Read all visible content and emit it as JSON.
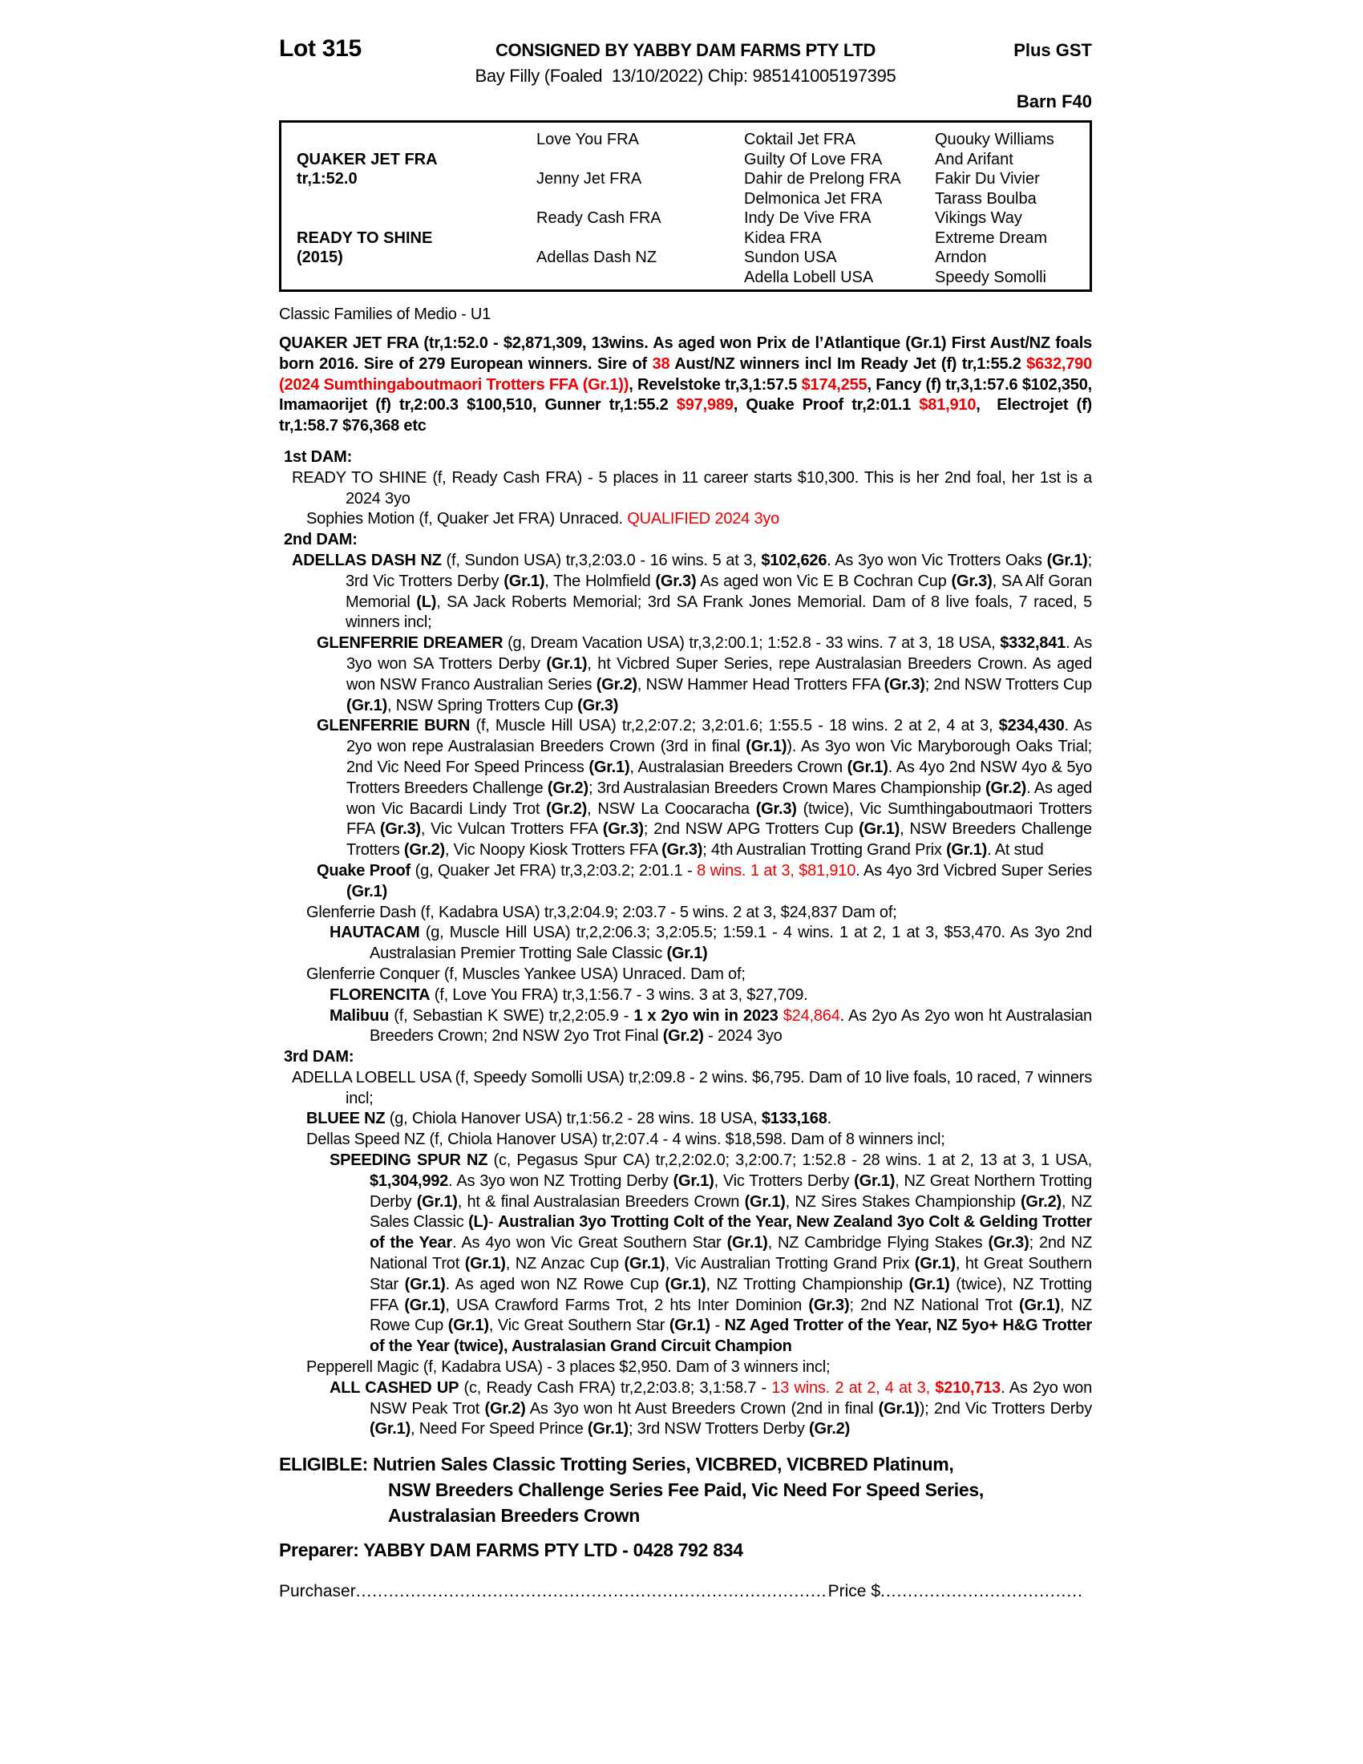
{
  "header": {
    "lot": "Lot 315",
    "consigned": "CONSIGNED BY YABBY DAM FARMS PTY LTD",
    "plus_gst": "Plus GST",
    "description": "Bay Filly (Foaled  13/10/2022) Chip: 985141005197395",
    "barn": "Barn F40"
  },
  "pedigree_box": {
    "sire_name": "QUAKER JET FRA",
    "sire_record": "tr,1:52.0",
    "dam_name": "READY TO SHINE",
    "dam_year": "(2015)",
    "gen2": [
      "Love You FRA",
      "Jenny Jet FRA",
      "Ready Cash FRA",
      "Adellas Dash NZ"
    ],
    "gen3": [
      "Coktail Jet FRA",
      "Guilty Of Love FRA",
      "Dahir de Prelong FRA",
      "Delmonica Jet FRA",
      "Indy De Vive FRA",
      "Kidea FRA",
      "Sundon USA",
      "Adella Lobell USA"
    ],
    "gen4": [
      "Quouky Williams",
      "And Arifant",
      "Fakir Du Vivier",
      "Tarass Boulba",
      "Vikings Way",
      "Extreme Dream",
      "Arndon",
      "Speedy Somolli"
    ]
  },
  "family_line": "Classic Families of Medio - U1",
  "sire_paragraph": [
    [
      "b",
      "QUAKER JET FRA (tr,1:52.0 - $2,871,309, 13wins. As aged won Prix de l’Atlantique (Gr.1) First Aust/NZ foals born 2016. Sire of 279 European winners. Sire of "
    ],
    [
      "br",
      "38"
    ],
    [
      "b",
      " Aust/NZ winners incl Im Ready Jet (f) tr,1:55.2 "
    ],
    [
      "br",
      "$632,790 (2024 Sumthingaboutmaori Trotters FFA (Gr.1))"
    ],
    [
      "b",
      ", Revelstoke tr,3,1:57.5 "
    ],
    [
      "br",
      "$174,255"
    ],
    [
      "b",
      ", Fancy (f) tr,3,1:57.6 $102,350, Imamaorijet (f) tr,2:00.3 $100,510, Gunner tr,1:55.2 "
    ],
    [
      "br",
      "$97,989"
    ],
    [
      "b",
      ", Quake Proof tr,2:01.1 "
    ],
    [
      "br",
      "$81,910"
    ],
    [
      "b",
      ",  Electrojet (f) tr,1:58.7 $76,368 etc"
    ]
  ],
  "sections": [
    {
      "cls": "dam-label",
      "segs": [
        [
          "b",
          "1st DAM:"
        ]
      ]
    },
    {
      "cls": "lvl1",
      "segs": [
        [
          "",
          "READY TO SHINE (f, Ready Cash FRA) - 5 places in 11 career starts $10,300. This is her 2nd foal, her 1st is a 2024 3yo"
        ]
      ]
    },
    {
      "cls": "lvl1b",
      "segs": [
        [
          "",
          "Sophies Motion (f, Quaker Jet FRA) Unraced. "
        ],
        [
          "r",
          "QUALIFIED 2024 3yo"
        ]
      ]
    },
    {
      "cls": "dam-label",
      "segs": [
        [
          "b",
          "2nd DAM:"
        ]
      ]
    },
    {
      "cls": "lvl1",
      "segs": [
        [
          "b",
          "ADELLAS DASH NZ"
        ],
        [
          "",
          " (f, Sundon USA) tr,3,2:03.0 - 16 wins. 5 at 3, "
        ],
        [
          "b",
          "$102,626"
        ],
        [
          "",
          ". As 3yo won Vic Trotters Oaks "
        ],
        [
          "b",
          "(Gr.1)"
        ],
        [
          "",
          "; 3rd Vic Trotters Derby "
        ],
        [
          "b",
          "(Gr.1)"
        ],
        [
          "",
          ", The Holmfield "
        ],
        [
          "b",
          "(Gr.3)"
        ],
        [
          "",
          " As aged won Vic E B Cochran Cup "
        ],
        [
          "b",
          "(Gr.3)"
        ],
        [
          "",
          ", SA Alf Goran Memorial "
        ],
        [
          "b",
          "(L)"
        ],
        [
          "",
          ", SA Jack Roberts Memorial; 3rd SA Frank Jones Memorial. Dam of 8 live foals, 7 raced, 5 winners incl;"
        ]
      ]
    },
    {
      "cls": "lvl2",
      "segs": [
        [
          "b",
          "GLENFERRIE DREAMER"
        ],
        [
          "",
          " (g, Dream Vacation USA) tr,3,2:00.1; 1:52.8 - 33 wins. 7 at 3, 18 USA, "
        ],
        [
          "b",
          "$332,841"
        ],
        [
          "",
          ". As 3yo won SA Trotters Derby "
        ],
        [
          "b",
          "(Gr.1)"
        ],
        [
          "",
          ", ht Vicbred Super Series, repe Australasian Breeders Crown. As aged won NSW Franco Australian Series "
        ],
        [
          "b",
          "(Gr.2)"
        ],
        [
          "",
          ", NSW Hammer Head Trotters FFA "
        ],
        [
          "b",
          "(Gr.3)"
        ],
        [
          "",
          "; 2nd NSW Trotters Cup "
        ],
        [
          "b",
          "(Gr.1)"
        ],
        [
          "",
          ", NSW Spring Trotters Cup "
        ],
        [
          "b",
          "(Gr.3)"
        ]
      ]
    },
    {
      "cls": "lvl2",
      "segs": [
        [
          "b",
          "GLENFERRIE BURN"
        ],
        [
          "",
          " (f, Muscle Hill USA) tr,2,2:07.2; 3,2:01.6; 1:55.5 - 18 wins. 2 at 2, 4 at 3, "
        ],
        [
          "b",
          "$234,430"
        ],
        [
          "",
          ". As 2yo won repe Australasian Breeders Crown (3rd in final "
        ],
        [
          "b",
          "(Gr.1)"
        ],
        [
          "",
          "). As 3yo won Vic Maryborough Oaks Trial; 2nd Vic Need For Speed Princess "
        ],
        [
          "b",
          "(Gr.1)"
        ],
        [
          "",
          ", Australasian Breeders Crown "
        ],
        [
          "b",
          "(Gr.1)"
        ],
        [
          "",
          ". As 4yo 2nd NSW 4yo & 5yo Trotters Breeders Challenge "
        ],
        [
          "b",
          "(Gr.2)"
        ],
        [
          "",
          "; 3rd Australasian Breeders Crown Mares Championship "
        ],
        [
          "b",
          "(Gr.2)"
        ],
        [
          "",
          ". As aged won Vic Bacardi Lindy Trot "
        ],
        [
          "b",
          "(Gr.2)"
        ],
        [
          "",
          ", NSW La Coocaracha "
        ],
        [
          "b",
          "(Gr.3)"
        ],
        [
          "",
          " (twice), Vic Sumthingaboutmaori Trotters FFA "
        ],
        [
          "b",
          "(Gr.3)"
        ],
        [
          "",
          ", Vic Vulcan Trotters FFA "
        ],
        [
          "b",
          "(Gr.3)"
        ],
        [
          "",
          "; 2nd NSW APG Trotters Cup "
        ],
        [
          "b",
          "(Gr.1)"
        ],
        [
          "",
          ", NSW Breeders Challenge Trotters "
        ],
        [
          "b",
          "(Gr.2)"
        ],
        [
          "",
          ", Vic Noopy Kiosk Trotters FFA "
        ],
        [
          "b",
          "(Gr.3)"
        ],
        [
          "",
          "; 4th Australian Trotting Grand Prix "
        ],
        [
          "b",
          "(Gr.1)"
        ],
        [
          "",
          ". At stud"
        ]
      ]
    },
    {
      "cls": "lvl2",
      "segs": [
        [
          "b",
          "Quake Proof"
        ],
        [
          "",
          " (g, Quaker Jet FRA) tr,3,2:03.2; 2:01.1 - "
        ],
        [
          "r",
          "8 wins. 1 at 3, $81,910"
        ],
        [
          "",
          ". As 4yo 3rd Vicbred Super Series "
        ],
        [
          "b",
          "(Gr.1)"
        ]
      ]
    },
    {
      "cls": "lvl1b",
      "segs": [
        [
          "",
          "Glenferrie Dash (f, Kadabra USA) tr,3,2:04.9; 2:03.7 - 5 wins. 2 at 3, $24,837 Dam of;"
        ]
      ]
    },
    {
      "cls": "lvl3",
      "segs": [
        [
          "b",
          "HAUTACAM"
        ],
        [
          "",
          " (g, Muscle Hill USA) tr,2,2:06.3; 3,2:05.5; 1:59.1 - 4 wins. 1 at 2, 1 at 3, $53,470. As 3yo 2nd Australasian Premier Trotting Sale Classic "
        ],
        [
          "b",
          "(Gr.1)"
        ]
      ]
    },
    {
      "cls": "lvl1b",
      "segs": [
        [
          "",
          "Glenferrie Conquer (f, Muscles Yankee USA) Unraced. Dam of;"
        ]
      ]
    },
    {
      "cls": "lvl3",
      "segs": [
        [
          "b",
          "FLORENCITA"
        ],
        [
          "",
          " (f, Love You FRA) tr,3,1:56.7 - 3 wins. 3 at 3, $27,709."
        ]
      ]
    },
    {
      "cls": "lvl3",
      "segs": [
        [
          "b",
          "Malibuu"
        ],
        [
          "",
          " (f, Sebastian K SWE) tr,2,2:05.9 - "
        ],
        [
          "b",
          "1 x 2yo win in 2023 "
        ],
        [
          "r",
          "$24,864"
        ],
        [
          "",
          ". As 2yo As 2yo won ht Australasian Breeders Crown; 2nd NSW 2yo Trot Final "
        ],
        [
          "b",
          "(Gr.2)"
        ],
        [
          "",
          " - 2024 3yo"
        ]
      ]
    },
    {
      "cls": "dam-label",
      "segs": [
        [
          "b",
          "3rd DAM:"
        ]
      ]
    },
    {
      "cls": "lvl1",
      "segs": [
        [
          "",
          "ADELLA LOBELL USA (f, Speedy Somolli USA) tr,2:09.8 - 2 wins. $6,795. Dam of 10 live foals, 10 raced, 7 winners incl;"
        ]
      ]
    },
    {
      "cls": "lvl1b",
      "segs": [
        [
          "b",
          "BLUEE NZ"
        ],
        [
          "",
          " (g, Chiola Hanover USA) tr,1:56.2 - 28 wins. 18 USA, "
        ],
        [
          "b",
          "$133,168"
        ],
        [
          "",
          "."
        ]
      ]
    },
    {
      "cls": "lvl1b",
      "segs": [
        [
          "",
          "Dellas Speed NZ (f, Chiola Hanover USA) tr,2:07.4 - 4 wins. $18,598. Dam of 8 winners incl;"
        ]
      ]
    },
    {
      "cls": "lvl3",
      "segs": [
        [
          "b",
          "SPEEDING SPUR NZ"
        ],
        [
          "",
          " (c, Pegasus Spur CA) tr,2,2:02.0; 3,2:00.7; 1:52.8 - 28 wins. 1 at 2, 13 at 3, 1 USA, "
        ],
        [
          "b",
          "$1,304,992"
        ],
        [
          "",
          ". As 3yo won NZ Trotting Derby "
        ],
        [
          "b",
          "(Gr.1)"
        ],
        [
          "",
          ", Vic Trotters Derby "
        ],
        [
          "b",
          "(Gr.1)"
        ],
        [
          "",
          ", NZ Great Northern Trotting Derby "
        ],
        [
          "b",
          "(Gr.1)"
        ],
        [
          "",
          ", ht & final Australasian Breeders Crown "
        ],
        [
          "b",
          "(Gr.1)"
        ],
        [
          "",
          ", NZ Sires Stakes Championship "
        ],
        [
          "b",
          "(Gr.2)"
        ],
        [
          "",
          ", NZ Sales Classic "
        ],
        [
          "b",
          "(L)"
        ],
        [
          "",
          "- "
        ],
        [
          "b",
          "Australian 3yo Trotting Colt of the Year, New Zealand 3yo Colt & Gelding Trotter of the Year"
        ],
        [
          "",
          ". As 4yo won Vic Great Southern Star "
        ],
        [
          "b",
          "(Gr.1)"
        ],
        [
          "",
          ", NZ Cambridge Flying Stakes "
        ],
        [
          "b",
          "(Gr.3)"
        ],
        [
          "",
          "; 2nd NZ National Trot "
        ],
        [
          "b",
          "(Gr.1)"
        ],
        [
          "",
          ", NZ Anzac Cup "
        ],
        [
          "b",
          "(Gr.1)"
        ],
        [
          "",
          ", Vic Australian Trotting Grand Prix "
        ],
        [
          "b",
          "(Gr.1)"
        ],
        [
          "",
          ", ht Great Southern Star "
        ],
        [
          "b",
          "(Gr.1)"
        ],
        [
          "",
          ". As aged won NZ Rowe Cup "
        ],
        [
          "b",
          "(Gr.1)"
        ],
        [
          "",
          ", NZ Trotting Championship "
        ],
        [
          "b",
          "(Gr.1)"
        ],
        [
          "",
          " (twice), NZ Trotting FFA "
        ],
        [
          "b",
          "(Gr.1)"
        ],
        [
          "",
          ", USA Crawford Farms Trot, 2 hts Inter Dominion "
        ],
        [
          "b",
          "(Gr.3)"
        ],
        [
          "",
          "; 2nd NZ National Trot "
        ],
        [
          "b",
          "(Gr.1)"
        ],
        [
          "",
          ", NZ Rowe Cup "
        ],
        [
          "b",
          "(Gr.1)"
        ],
        [
          "",
          ", Vic Great Southern Star "
        ],
        [
          "b",
          "(Gr.1)"
        ],
        [
          "",
          " - "
        ],
        [
          "b",
          "NZ Aged Trotter of the Year, NZ 5yo+ H&G Trotter of the Year (twice), Australasian Grand Circuit Champion"
        ]
      ]
    },
    {
      "cls": "lvl1b",
      "segs": [
        [
          "",
          "Pepperell Magic (f, Kadabra USA) - 3 places $2,950. Dam of 3 winners incl;"
        ]
      ]
    },
    {
      "cls": "lvl3",
      "segs": [
        [
          "b",
          "ALL CASHED UP"
        ],
        [
          "",
          " (c, Ready Cash FRA) tr,2,2:03.8; 3,1:58.7 - "
        ],
        [
          "r",
          "13 wins. 2 at 2, 4 at 3, "
        ],
        [
          "br",
          "$210,713"
        ],
        [
          "",
          ". As 2yo won NSW Peak Trot "
        ],
        [
          "b",
          "(Gr.2)"
        ],
        [
          "",
          " As 3yo won ht Aust Breeders Crown (2nd in final "
        ],
        [
          "b",
          "(Gr.1)"
        ],
        [
          "",
          "); 2nd Vic Trotters Derby "
        ],
        [
          "b",
          "(Gr.1)"
        ],
        [
          "",
          ", Need For Speed Prince "
        ],
        [
          "b",
          "(Gr.1)"
        ],
        [
          "",
          "; 3rd NSW Trotters Derby "
        ],
        [
          "b",
          "(Gr.2)"
        ]
      ]
    }
  ],
  "eligible_lines": [
    "ELIGIBLE: Nutrien Sales Classic Trotting Series, VICBRED, VICBRED Platinum,",
    "NSW Breeders Challenge Series Fee Paid, Vic Need For Speed Series,",
    "Australasian Breeders Crown"
  ],
  "preparer": "Preparer: YABBY DAM FARMS PTY LTD - 0428 792 834",
  "purchaser": {
    "label": "Purchaser",
    "leader": "................................................................................................................................",
    "price_label": "Price $",
    "trailing": "................................................................"
  },
  "colors": {
    "text": "#000000",
    "highlight_red": "#ee0000"
  }
}
